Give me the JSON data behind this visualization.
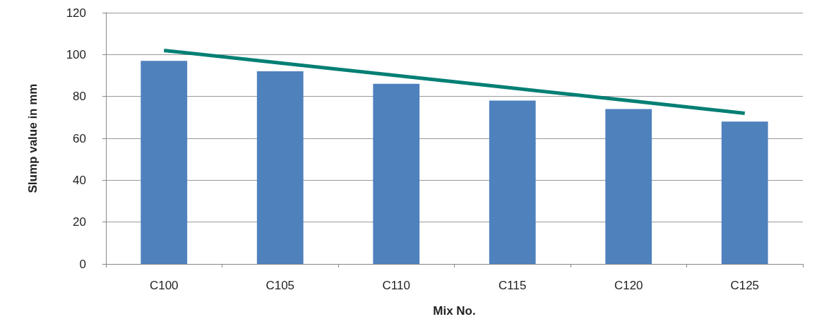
{
  "chart_data": {
    "type": "bar",
    "xlabel": "Mix No.",
    "ylabel": "Slump value in mm",
    "categories": [
      "C100",
      "C105",
      "C110",
      "C115",
      "C120",
      "C125"
    ],
    "series": [
      {
        "color": "#4f81bd",
        "values": [
          97,
          92,
          86,
          78,
          74,
          68
        ]
      },
      {
        "type": "line",
        "color": "#007f74",
        "values": [
          102,
          96,
          90,
          84,
          78,
          72
        ],
        "marker": "none"
      }
    ],
    "ylim": [
      0,
      120
    ],
    "yticks": [
      0,
      20,
      40,
      60,
      80,
      100,
      120
    ],
    "grid": "y"
  }
}
